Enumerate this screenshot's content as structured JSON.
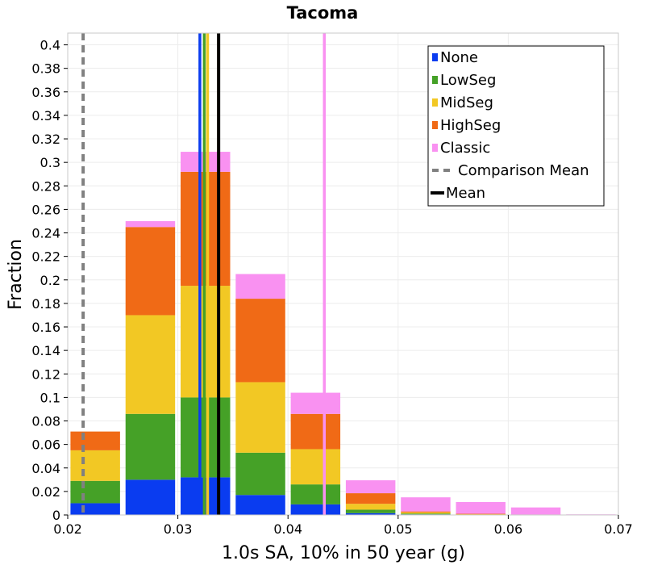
{
  "chart_data": {
    "type": "bar",
    "stacked": true,
    "title": "Tacoma",
    "xlabel": "1.0s SA, 10% in 50 year (g)",
    "ylabel": "Fraction",
    "xlim": [
      0.02,
      0.07
    ],
    "ylim": [
      0,
      0.41
    ],
    "x_ticks": [
      "0.02",
      "0.03",
      "0.04",
      "0.05",
      "0.06",
      "0.07"
    ],
    "y_ticks": [
      "0",
      "0.02",
      "0.04",
      "0.06",
      "0.08",
      "0.1",
      "0.12",
      "0.14",
      "0.16",
      "0.18",
      "0.2",
      "0.22",
      "0.24",
      "0.26",
      "0.28",
      "0.3",
      "0.32",
      "0.34",
      "0.36",
      "0.38",
      "0.4"
    ],
    "grid": true,
    "legend_position": "top-right",
    "bin_width": 0.005,
    "bins": [
      0.0225,
      0.0275,
      0.0325,
      0.0375,
      0.0425,
      0.0475,
      0.0525,
      0.0575,
      0.0625,
      0.0675
    ],
    "series": [
      {
        "name": "None",
        "color": "#0a3cf0",
        "values": [
          0.01,
          0.03,
          0.032,
          0.017,
          0.009,
          0.0015,
          0.0005,
          0.0002,
          0.0001,
          0
        ]
      },
      {
        "name": "LowSeg",
        "color": "#45a127",
        "values": [
          0.019,
          0.056,
          0.068,
          0.036,
          0.017,
          0.003,
          0.0007,
          0.0002,
          0.0001,
          0
        ]
      },
      {
        "name": "MidSeg",
        "color": "#f2c824",
        "values": [
          0.026,
          0.084,
          0.095,
          0.06,
          0.03,
          0.005,
          0.001,
          0.0004,
          0.0001,
          0
        ]
      },
      {
        "name": "HighSeg",
        "color": "#f06a16",
        "values": [
          0.016,
          0.075,
          0.097,
          0.071,
          0.03,
          0.009,
          0.0008,
          0.0002,
          0.0001,
          0
        ]
      },
      {
        "name": "Classic",
        "color": "#f991f1",
        "values": [
          0,
          0.005,
          0.017,
          0.021,
          0.018,
          0.011,
          0.012,
          0.01,
          0.006,
          0.0005
        ]
      }
    ],
    "mean_lines": [
      {
        "series": "None",
        "color": "#0a3cf0",
        "x": 0.032
      },
      {
        "series": "LowSeg",
        "color": "#45a127",
        "x": 0.0324
      },
      {
        "series": "MidSeg",
        "color": "#f2c824",
        "x": 0.0327
      },
      {
        "series": "HighSeg",
        "color": "#f06a16",
        "x": 0.0337
      },
      {
        "series": "Classic",
        "color": "#f991f1",
        "x": 0.0433
      }
    ],
    "mean": {
      "name": "Mean",
      "color": "#000000",
      "x": 0.0337
    },
    "comparison_mean": {
      "name": "Comparison Mean",
      "color": "#808080",
      "x": 0.0214
    }
  }
}
